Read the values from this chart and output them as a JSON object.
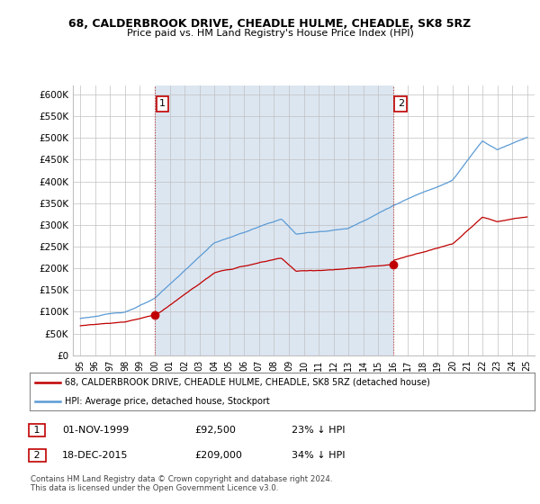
{
  "title": "68, CALDERBROOK DRIVE, CHEADLE HULME, CHEADLE, SK8 5RZ",
  "subtitle": "Price paid vs. HM Land Registry's House Price Index (HPI)",
  "ylim": [
    0,
    620000
  ],
  "yticks": [
    0,
    50000,
    100000,
    150000,
    200000,
    250000,
    300000,
    350000,
    400000,
    450000,
    500000,
    550000,
    600000
  ],
  "ytick_labels": [
    "£0",
    "£50K",
    "£100K",
    "£150K",
    "£200K",
    "£250K",
    "£300K",
    "£350K",
    "£400K",
    "£450K",
    "£500K",
    "£550K",
    "£600K"
  ],
  "hpi_color": "#5b9bd5",
  "price_color": "#c00000",
  "vline_color": "#c00000",
  "fill_color": "#dce6f1",
  "marker1_date": 2000.0,
  "marker1_price": 92500,
  "marker1_label": "1",
  "marker2_date": 2016.0,
  "marker2_price": 209000,
  "marker2_label": "2",
  "legend_line1": "68, CALDERBROOK DRIVE, CHEADLE HULME, CHEADLE, SK8 5RZ (detached house)",
  "legend_line2": "HPI: Average price, detached house, Stockport",
  "table_row1": [
    "1",
    "01-NOV-1999",
    "£92,500",
    "23% ↓ HPI"
  ],
  "table_row2": [
    "2",
    "18-DEC-2015",
    "£209,000",
    "34% ↓ HPI"
  ],
  "footnote": "Contains HM Land Registry data © Crown copyright and database right 2024.\nThis data is licensed under the Open Government Licence v3.0.",
  "background_color": "#ffffff",
  "grid_color": "#c0c0c0",
  "xlim_start": 1994.5,
  "xlim_end": 2025.5
}
